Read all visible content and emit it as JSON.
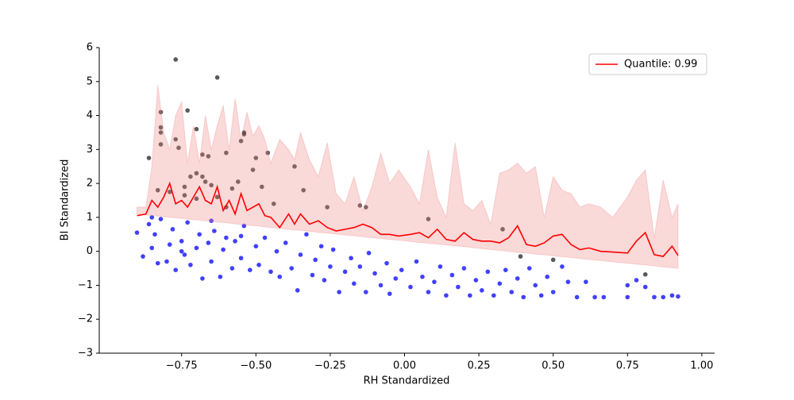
{
  "chart_data": {
    "type": "line",
    "xlabel": "RH Standardized",
    "ylabel": "BI Standardized",
    "xlim": [
      -1.027,
      1.043
    ],
    "ylim": [
      -3,
      6
    ],
    "xticks": [
      {
        "value": -0.75,
        "label": "−0.75"
      },
      {
        "value": -0.5,
        "label": "−0.50"
      },
      {
        "value": -0.25,
        "label": "−0.25"
      },
      {
        "value": 0,
        "label": "0.00"
      },
      {
        "value": 0.25,
        "label": "0.25"
      },
      {
        "value": 0.5,
        "label": "0.50"
      },
      {
        "value": 0.75,
        "label": "0.75"
      },
      {
        "value": 1,
        "label": "1.00"
      }
    ],
    "yticks": [
      {
        "value": -3,
        "label": "−3"
      },
      {
        "value": -2,
        "label": "−2"
      },
      {
        "value": -1,
        "label": "−1"
      },
      0,
      1,
      2,
      3,
      4,
      5,
      6
    ],
    "legend": "upper right",
    "series": [
      {
        "name": "Quantile: 0.99",
        "color": "#ff0000",
        "x": [
          -0.9,
          -0.87,
          -0.85,
          -0.83,
          -0.81,
          -0.79,
          -0.77,
          -0.75,
          -0.73,
          -0.71,
          -0.69,
          -0.67,
          -0.65,
          -0.63,
          -0.61,
          -0.59,
          -0.57,
          -0.55,
          -0.53,
          -0.51,
          -0.49,
          -0.47,
          -0.45,
          -0.42,
          -0.39,
          -0.37,
          -0.35,
          -0.32,
          -0.29,
          -0.26,
          -0.23,
          -0.2,
          -0.17,
          -0.14,
          -0.11,
          -0.08,
          -0.05,
          -0.02,
          0.02,
          0.05,
          0.08,
          0.11,
          0.14,
          0.17,
          0.2,
          0.23,
          0.26,
          0.29,
          0.32,
          0.35,
          0.38,
          0.41,
          0.44,
          0.47,
          0.5,
          0.53,
          0.56,
          0.59,
          0.62,
          0.66,
          0.7,
          0.75,
          0.78,
          0.81,
          0.84,
          0.87,
          0.9,
          0.92
        ],
        "values": [
          1.05,
          1.1,
          1.5,
          1.3,
          1.6,
          2.0,
          1.4,
          1.5,
          1.3,
          1.6,
          1.9,
          1.5,
          1.4,
          1.9,
          1.2,
          1.5,
          1.1,
          1.7,
          1.2,
          1.3,
          1.4,
          1.05,
          1.0,
          0.7,
          1.1,
          0.8,
          1.1,
          0.8,
          0.9,
          0.7,
          0.6,
          0.65,
          0.7,
          0.8,
          0.7,
          0.5,
          0.5,
          0.45,
          0.5,
          0.55,
          0.4,
          0.65,
          0.35,
          0.3,
          0.55,
          0.35,
          0.3,
          0.3,
          0.25,
          0.4,
          0.75,
          0.2,
          0.15,
          0.25,
          0.45,
          0.5,
          0.2,
          0.05,
          0.1,
          0.0,
          -0.02,
          -0.05,
          0.3,
          0.55,
          -0.1,
          -0.15,
          0.15,
          -0.12
        ]
      }
    ],
    "band": {
      "color": "#f08080",
      "upper": [
        1.3,
        1.3,
        2.5,
        4.9,
        3.5,
        3.0,
        4.0,
        4.4,
        2.6,
        3.7,
        2.6,
        4.0,
        3.0,
        3.7,
        4.3,
        3.0,
        4.5,
        3.3,
        4.1,
        3.4,
        3.7,
        3.3,
        2.6,
        3.3,
        3.0,
        2.7,
        3.5,
        2.7,
        2.2,
        3.2,
        1.7,
        1.4,
        2.2,
        1.2,
        1.9,
        2.9,
        2.0,
        2.4,
        1.9,
        1.4,
        3.0,
        1.6,
        1.0,
        3.2,
        1.4,
        1.2,
        1.5,
        0.8,
        2.3,
        2.4,
        2.6,
        2.3,
        2.5,
        1.0,
        2.2,
        1.8,
        1.7,
        1.3,
        1.4,
        1.3,
        1.0,
        1.6,
        2.1,
        2.4,
        0.4,
        2.1,
        1.0,
        1.4
      ],
      "lower": [
        1.1,
        1.07,
        1.06,
        1.04,
        1.02,
        1.0,
        0.99,
        0.97,
        0.95,
        0.93,
        0.92,
        0.9,
        0.88,
        0.86,
        0.85,
        0.83,
        0.81,
        0.79,
        0.77,
        0.76,
        0.74,
        0.72,
        0.7,
        0.68,
        0.65,
        0.63,
        0.62,
        0.59,
        0.56,
        0.54,
        0.51,
        0.48,
        0.46,
        0.43,
        0.4,
        0.38,
        0.35,
        0.33,
        0.29,
        0.26,
        0.24,
        0.21,
        0.19,
        0.16,
        0.14,
        0.11,
        0.08,
        0.05,
        0.03,
        0.0,
        -0.03,
        -0.05,
        -0.08,
        -0.1,
        -0.13,
        -0.16,
        -0.18,
        -0.21,
        -0.24,
        -0.27,
        -0.31,
        -0.35,
        -0.38,
        -0.4,
        -0.43,
        -0.46,
        -0.48,
        -0.5
      ]
    },
    "points": [
      {
        "color": "#0000ff",
        "x": [
          -0.9,
          -0.88,
          -0.86,
          -0.85,
          -0.84,
          -0.83,
          -0.82,
          -0.8,
          -0.79,
          -0.78,
          -0.77,
          -0.75,
          -0.74,
          -0.73,
          -0.72,
          -0.7,
          -0.69,
          -0.68,
          -0.66,
          -0.65,
          -0.64,
          -0.62,
          -0.61,
          -0.6,
          -0.58,
          -0.57,
          -0.55,
          -0.54,
          -0.52,
          -0.5,
          -0.49,
          -0.47,
          -0.45,
          -0.43,
          -0.42,
          -0.4,
          -0.38,
          -0.36,
          -0.35,
          -0.33,
          -0.31,
          -0.3,
          -0.28,
          -0.27,
          -0.25,
          -0.24,
          -0.22,
          -0.2,
          -0.18,
          -0.17,
          -0.15,
          -0.13,
          -0.12,
          -0.1,
          -0.08,
          -0.06,
          -0.05,
          -0.03,
          -0.01,
          0.02,
          0.04,
          0.06,
          0.08,
          0.1,
          0.12,
          0.14,
          0.16,
          0.18,
          0.2,
          0.22,
          0.24,
          0.26,
          0.28,
          0.3,
          0.32,
          0.34,
          0.36,
          0.38,
          0.4,
          0.42,
          0.44,
          0.46,
          0.48,
          0.5,
          0.53,
          0.55,
          0.58,
          0.61,
          0.64,
          0.67,
          0.75,
          0.75,
          0.78,
          0.81,
          0.84,
          0.87,
          0.9,
          0.92,
          -0.85,
          -0.75,
          -0.65,
          -0.55
        ],
        "values": [
          0.55,
          -0.15,
          0.8,
          0.1,
          0.5,
          -0.35,
          0.95,
          -0.3,
          0.2,
          0.65,
          -0.55,
          0.3,
          -0.1,
          0.85,
          -0.4,
          0.1,
          0.5,
          -0.8,
          0.25,
          -0.3,
          0.6,
          -0.75,
          0.05,
          0.4,
          -0.5,
          0.3,
          -0.2,
          0.75,
          -0.55,
          0.15,
          -0.4,
          0.4,
          -0.6,
          0.0,
          -0.75,
          0.25,
          -0.5,
          -1.15,
          -0.1,
          0.5,
          -0.7,
          -0.25,
          0.15,
          -0.85,
          -0.45,
          0.05,
          -1.2,
          -0.6,
          -0.2,
          -0.95,
          -0.45,
          -1.2,
          -0.05,
          -0.65,
          -1.0,
          -0.35,
          -1.25,
          -0.8,
          -0.55,
          -1.05,
          -0.3,
          -0.75,
          -1.2,
          -0.9,
          -0.45,
          -1.3,
          -0.7,
          -1.05,
          -0.5,
          -1.3,
          -0.85,
          -1.15,
          -0.6,
          -1.3,
          -0.95,
          -0.55,
          -1.2,
          -0.8,
          -1.35,
          -0.5,
          -1.0,
          -1.3,
          -0.75,
          -1.2,
          -0.45,
          -0.9,
          -1.35,
          -0.9,
          -1.35,
          -1.35,
          -1.35,
          -1.0,
          -0.85,
          -1.05,
          -1.35,
          -1.35,
          -1.3,
          -1.33,
          1.0,
          0.0,
          0.9,
          0.45
        ]
      },
      {
        "color": "#222222",
        "x": [
          -0.77,
          -0.63,
          -0.73,
          -0.82,
          -0.82,
          -0.82,
          -0.77,
          -0.76,
          -0.82,
          -0.86,
          -0.7,
          -0.68,
          -0.66,
          -0.6,
          -0.55,
          -0.54,
          -0.54,
          -0.46,
          -0.5,
          -0.37,
          -0.72,
          -0.7,
          -0.68,
          -0.67,
          -0.65,
          -0.74,
          -0.83,
          -0.79,
          -0.74,
          -0.7,
          -0.63,
          -0.56,
          -0.58,
          -0.51,
          -0.48,
          -0.34,
          -0.26,
          -0.13,
          -0.15,
          0.08,
          0.39,
          0.5,
          0.81,
          0.33,
          -0.44,
          -0.6
        ],
        "values": [
          5.65,
          5.12,
          4.15,
          4.1,
          3.65,
          3.5,
          3.3,
          3.05,
          3.15,
          2.75,
          3.6,
          2.85,
          2.8,
          2.9,
          3.25,
          3.45,
          3.5,
          2.9,
          2.75,
          2.5,
          2.2,
          2.3,
          2.2,
          2.05,
          1.95,
          1.9,
          1.8,
          1.75,
          1.65,
          1.55,
          1.6,
          2.05,
          1.85,
          2.4,
          1.9,
          1.8,
          1.3,
          1.3,
          1.35,
          0.95,
          -0.15,
          -0.25,
          -0.68,
          0.65,
          1.4,
          1.3
        ]
      }
    ]
  }
}
